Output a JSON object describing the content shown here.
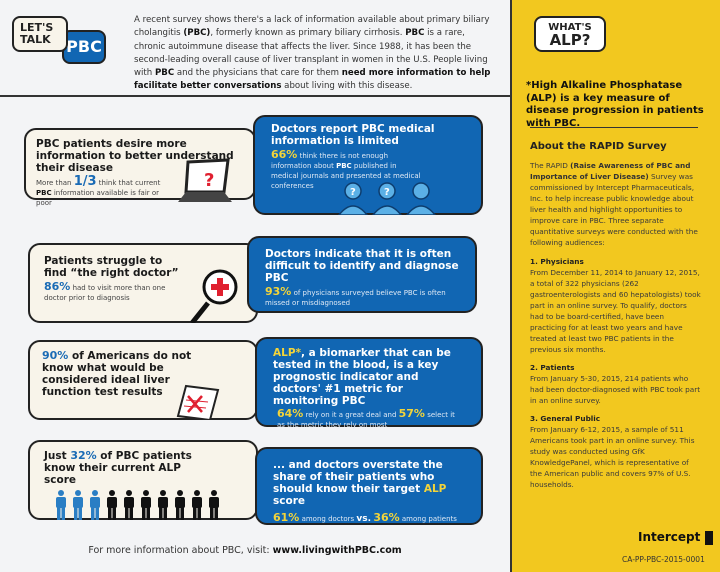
{
  "logo": {
    "lets_talk": "LET'S TALK",
    "pbc": "PBC"
  },
  "intro": [
    "A recent survey shows there's a lack of information available about primary biliary cholangitis ",
    "(PBC)",
    ", formerly known as primary biliary cirrhosis. ",
    "PBC",
    " is a rare, chronic autoimmune disease that affects the liver. Since 1988, it has been the second-leading overall cause of liver transplant in women in the U.S. People living with ",
    "PBC",
    " and the physicians that care for them ",
    "need more information to help facilitate better conversations",
    " about living with this disease."
  ],
  "row1": {
    "patient": {
      "title": "PBC patients desire more information to better understand their disease",
      "pre": "More than ",
      "stat": "1/3",
      "post1": " think that current ",
      "bold": "PBC",
      "post2": " information available is fair or poor",
      "icon": "laptop-question-icon"
    },
    "doctor": {
      "title": "Doctors report PBC medical information is limited",
      "stat": "66%",
      "t1": " think there is not enough information about ",
      "bold": "PBC",
      "t2": " published in medical journals and presented at medical conferences",
      "icon": "doctors-question-icon"
    }
  },
  "row2": {
    "patient": {
      "title": "Patients struggle to find “the right doctor”",
      "stat": "86%",
      "text": " had to visit more than one doctor prior to diagnosis",
      "icon": "magnifier-cross-icon"
    },
    "doctor": {
      "title": "Doctors indicate that it is often difficult to identify and diagnose PBC",
      "stat": "93%",
      "text": " of physicians surveyed believe PBC is often missed or misdiagnosed"
    }
  },
  "row3": {
    "patient": {
      "stat": "90%",
      "title": " of Americans do not know what would be considered ideal liver function test results",
      "icon": "test-results-icon"
    },
    "doctor": {
      "alp": "ALP*",
      "title": ", a biomarker that can be tested in the blood, is a key prognostic indicator and doctors' #1 metric for monitoring PBC",
      "stat1": "64%",
      "t1": " rely on it a great deal and ",
      "stat2": "57%",
      "t2": " select it as the metric they rely on most"
    }
  },
  "row4": {
    "patient": {
      "pre": "Just ",
      "stat": "32%",
      "title": " of PBC patients know their current ALP score",
      "people_known": 3,
      "people_total": 10,
      "known_color": "#2a7ec4",
      "unknown_color": "#111111"
    },
    "doctor": {
      "t1": "... and doctors overstate the share of their patients who should know their target ",
      "alp": "ALP",
      "t2": " score",
      "stat1": "61%",
      "a1": " among doctors ",
      "vs": "vs.",
      "stat2": "36%",
      "a2": " among patients"
    }
  },
  "footer": {
    "text": "For more information about PBC, visit: ",
    "url": "www.livingwithPBC.com"
  },
  "sidebar": {
    "badge1": "WHAT'S",
    "badge2": "ALP?",
    "definition": "*High Alkaline Phosphatase (ALP) is a key measure of disease progression in patients with PBC.",
    "about_title": "About the RAPID Survey",
    "about_pre": "The RAPID ",
    "about_bold": "(Raise Awareness of PBC and Importance of Liver Disease)",
    "about_post": " Survey was commissioned by Intercept Pharmaceuticals, Inc. to help increase public knowledge about liver health and highlight opportunities to improve care in PBC. Three separate quantitative surveys were conducted with the following audiences:",
    "sections": [
      {
        "title": "1. Physicians",
        "text": "From December 11, 2014 to January 12, 2015, a total of 322 physicians (262 gastroenterologists and 60 hepatologists) took part in an online survey.  To qualify, doctors had to be board-certified, have been practicing for at least two years and have treated at least two PBC patients in the previous six months."
      },
      {
        "title": "2. Patients",
        "text": "From January 5-30, 2015, 214 patients who had been doctor-diagnosed with PBC took part in an online survey."
      },
      {
        "title": "3. General Public",
        "text": "From January 6-12, 2015, a sample of 511 Americans took part in an online survey. This study was conducted using GfK KnowledgePanel, which is representative of the American public and covers 97% of U.S. households."
      }
    ],
    "brand": "Intercept",
    "code": "CA-PP-PBC-2015-0001"
  },
  "colors": {
    "blue": "#1166b3",
    "yellow": "#f2c81f",
    "accent_yellow": "#f2d43a",
    "cream": "#f8f4ea"
  }
}
